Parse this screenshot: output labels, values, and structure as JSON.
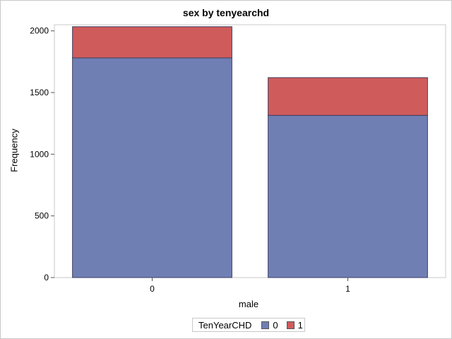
{
  "chart_data": {
    "type": "bar",
    "stacked": true,
    "title": "sex by tenyearchd",
    "xlabel": "male",
    "ylabel": "Frequency",
    "categories": [
      "0",
      "1"
    ],
    "series": [
      {
        "name": "0",
        "values": [
          1781,
          1315
        ],
        "color": "#6f7fb4"
      },
      {
        "name": "1",
        "values": [
          253,
          306
        ],
        "color": "#d05b5b"
      }
    ],
    "ylim": [
      0,
      2050
    ],
    "yticks": [
      0,
      500,
      1000,
      1500,
      2000
    ],
    "legend": {
      "title": "TenYearCHD",
      "placement": "bottom-center"
    }
  }
}
